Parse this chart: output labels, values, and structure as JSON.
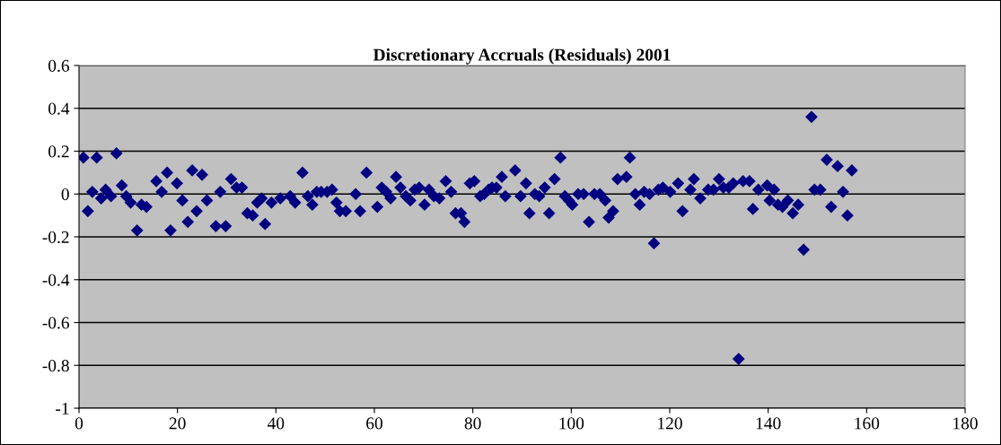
{
  "chart_data": {
    "type": "scatter",
    "title": "Discretionary Accruals (Residuals) 2001",
    "x": [
      0.9,
      1.8,
      2.7,
      3.6,
      4.5,
      5.4,
      6.5,
      7.6,
      8.7,
      9.6,
      10.5,
      11.8,
      12.7,
      13.7,
      15.7,
      16.8,
      17.9,
      18.6,
      19.9,
      21.0,
      22.1,
      23.0,
      23.9,
      25.0,
      26.0,
      27.8,
      28.7,
      29.8,
      30.9,
      32.0,
      33.1,
      34.2,
      35.3,
      36.2,
      37.1,
      37.8,
      39.1,
      40.9,
      42.9,
      43.9,
      45.4,
      46.5,
      47.4,
      48.3,
      49.2,
      50.4,
      51.4,
      52.3,
      53.0,
      54.2,
      56.2,
      57.1,
      58.4,
      60.6,
      61.5,
      62.4,
      63.3,
      64.4,
      65.3,
      66.4,
      67.3,
      68.2,
      69.1,
      70.2,
      71.1,
      72.1,
      73.2,
      74.5,
      75.6,
      76.5,
      77.6,
      78.3,
      79.4,
      80.3,
      81.5,
      82.3,
      83.2,
      83.9,
      84.8,
      85.9,
      86.6,
      88.6,
      89.7,
      90.8,
      91.5,
      92.6,
      93.5,
      94.6,
      95.5,
      96.6,
      97.8,
      98.7,
      99.5,
      100.2,
      101.4,
      102.5,
      103.6,
      104.7,
      105.8,
      106.9,
      107.6,
      108.5,
      109.4,
      111.2,
      111.9,
      113.0,
      113.9,
      114.8,
      115.9,
      116.8,
      117.7,
      118.6,
      120.1,
      121.7,
      122.6,
      124.2,
      124.9,
      126.2,
      127.8,
      128.9,
      130.0,
      130.9,
      132.0,
      132.9,
      134.0,
      134.9,
      136.2,
      136.9,
      138.0,
      139.8,
      140.3,
      141.2,
      142.0,
      142.9,
      144.0,
      145.0,
      146.1,
      147.2,
      148.8,
      149.4,
      150.6,
      151.9,
      152.8,
      154.1,
      155.2,
      156.1,
      157.0
    ],
    "series": [
      {
        "color": "#000080",
        "values": [
          0.17,
          -0.08,
          0.01,
          0.17,
          -0.02,
          0.02,
          -0.01,
          0.19,
          0.04,
          -0.01,
          -0.04,
          -0.17,
          -0.05,
          -0.06,
          0.06,
          0.01,
          0.1,
          -0.17,
          0.05,
          -0.03,
          -0.13,
          0.11,
          -0.08,
          0.09,
          -0.03,
          -0.15,
          0.01,
          -0.15,
          0.07,
          0.03,
          0.03,
          -0.09,
          -0.1,
          -0.04,
          -0.02,
          -0.14,
          -0.04,
          -0.02,
          -0.01,
          -0.04,
          0.1,
          -0.01,
          -0.05,
          0.01,
          0.01,
          0.01,
          0.02,
          -0.04,
          -0.08,
          -0.08,
          0,
          -0.08,
          0.1,
          -0.06,
          0.03,
          0.01,
          -0.02,
          0.08,
          0.03,
          -0.01,
          -0.03,
          0.02,
          0.03,
          -0.05,
          0.02,
          -0.01,
          -0.02,
          0.06,
          0.01,
          -0.09,
          -0.09,
          -0.13,
          0.05,
          0.06,
          -0.01,
          0,
          0.02,
          0.03,
          0.03,
          0.08,
          -0.01,
          0.11,
          -0.01,
          0.05,
          -0.09,
          0,
          -0.01,
          0.03,
          -0.09,
          0.07,
          0.17,
          -0.01,
          -0.03,
          -0.05,
          0,
          0,
          -0.13,
          0,
          0,
          -0.03,
          -0.11,
          -0.08,
          0.07,
          0.08,
          0.17,
          0,
          -0.05,
          0.01,
          0,
          -0.23,
          0.02,
          0.03,
          0.01,
          0.05,
          -0.08,
          0.02,
          0.07,
          -0.02,
          0.02,
          0.02,
          0.07,
          0.03,
          0.03,
          0.05,
          -0.77,
          0.06,
          0.06,
          -0.07,
          0.02,
          0.04,
          -0.03,
          0.02,
          -0.05,
          -0.06,
          -0.03,
          -0.09,
          -0.05,
          -0.26,
          0.36,
          0.02,
          0.02,
          0.16,
          -0.06,
          0.13,
          0.01,
          -0.1,
          0.11
        ]
      }
    ],
    "marker": "diamond",
    "xlim": [
      0,
      180
    ],
    "xticks": [
      0,
      20,
      40,
      60,
      80,
      100,
      120,
      140,
      160,
      180
    ],
    "ylim": [
      -1,
      0.6
    ],
    "yticks": [
      -1,
      -0.8,
      -0.6,
      -0.4,
      -0.2,
      0,
      0.2,
      0.4,
      0.6
    ],
    "grid": "y"
  }
}
